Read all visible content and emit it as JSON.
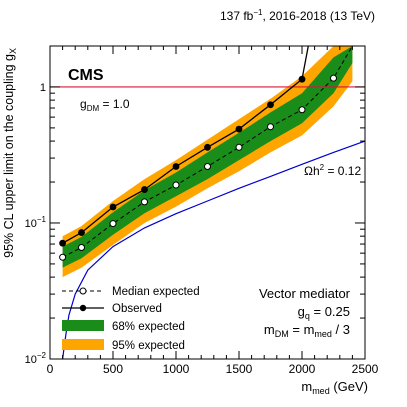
{
  "header": {
    "lumi": "137 fb",
    "lumi_sup": "−1",
    "lumi_rest": ", 2016-2018 (13 TeV)",
    "experiment": "CMS"
  },
  "colors": {
    "band95": "#ffa500",
    "band68": "#1a8c1a",
    "observed": "#000000",
    "expected": "#000000",
    "relic": "#0000cc",
    "coupling_line": "#dc143c",
    "coupling_text": "#dc143c",
    "relic_text": "#0000cc"
  },
  "annotations": {
    "coupling_g": "g",
    "coupling_sub": "DM",
    "coupling_val": " = 1.0",
    "relic_pre": "Ωh",
    "relic_sup": "2",
    "relic_val": " = 0.12",
    "mediator": "Vector mediator",
    "gq_g": "g",
    "gq_sub": "q",
    "gq_val": " = 0.25",
    "mass_m1": "m",
    "mass_sub1": "DM",
    "mass_mid": " = m",
    "mass_sub2": "med",
    "mass_end": " / 3"
  },
  "legend": {
    "median": "Median expected",
    "observed": "Observed",
    "band68": "68% expected",
    "band95": "95% expected"
  },
  "chart_data": {
    "type": "line",
    "xlabel_main": "m",
    "xlabel_sub": "med",
    "xlabel_unit": " (GeV)",
    "ylabel_main": "95% CL upper limit on the coupling g",
    "ylabel_sub": "X",
    "xlim": [
      0,
      2500
    ],
    "ylim": [
      0.01,
      2.0
    ],
    "yscale": "log",
    "x_ticks": [
      "0",
      "500",
      "1000",
      "1500",
      "2000",
      "2500"
    ],
    "y_ticks": [
      {
        "base": "10",
        "exp": "−2",
        "value": 0.01
      },
      {
        "base": "10",
        "exp": "−1",
        "value": 0.1
      },
      {
        "base": "1",
        "exp": "",
        "value": 1
      }
    ],
    "reference_line_y": 1.0,
    "series": [
      {
        "name": "Observed",
        "x": [
          100,
          250,
          500,
          750,
          1000,
          1250,
          1500,
          1750,
          2000,
          2050
        ],
        "y": [
          0.071,
          0.085,
          0.131,
          0.176,
          0.26,
          0.36,
          0.49,
          0.74,
          1.14,
          2.0
        ]
      },
      {
        "name": "Median expected",
        "x": [
          100,
          250,
          500,
          750,
          1000,
          1250,
          1500,
          1750,
          2000,
          2250,
          2400
        ],
        "y": [
          0.056,
          0.066,
          0.099,
          0.143,
          0.19,
          0.26,
          0.36,
          0.51,
          0.68,
          1.16,
          2.0
        ]
      }
    ],
    "band68": {
      "x": [
        100,
        250,
        500,
        750,
        1000,
        1250,
        1500,
        1750,
        2000,
        2250,
        2400
      ],
      "low": [
        0.047,
        0.055,
        0.082,
        0.118,
        0.157,
        0.21,
        0.29,
        0.4,
        0.54,
        0.9,
        1.5
      ],
      "high": [
        0.067,
        0.079,
        0.12,
        0.174,
        0.235,
        0.33,
        0.46,
        0.65,
        0.9,
        1.65,
        2.0
      ]
    },
    "band95": {
      "x": [
        100,
        250,
        500,
        750,
        1000,
        1250,
        1500,
        1750,
        2000,
        2250,
        2400
      ],
      "low": [
        0.04,
        0.047,
        0.069,
        0.1,
        0.132,
        0.18,
        0.24,
        0.33,
        0.44,
        0.72,
        1.1
      ],
      "high": [
        0.08,
        0.095,
        0.145,
        0.21,
        0.29,
        0.41,
        0.58,
        0.82,
        1.2,
        2.0,
        2.0
      ]
    },
    "relic_curve": {
      "x": [
        100,
        125,
        150,
        200,
        300,
        500,
        750,
        1000,
        1250,
        1500,
        1750,
        2000,
        2250,
        2500
      ],
      "y": [
        0.01,
        0.015,
        0.021,
        0.03,
        0.045,
        0.067,
        0.092,
        0.117,
        0.145,
        0.18,
        0.22,
        0.27,
        0.33,
        0.4
      ]
    }
  }
}
